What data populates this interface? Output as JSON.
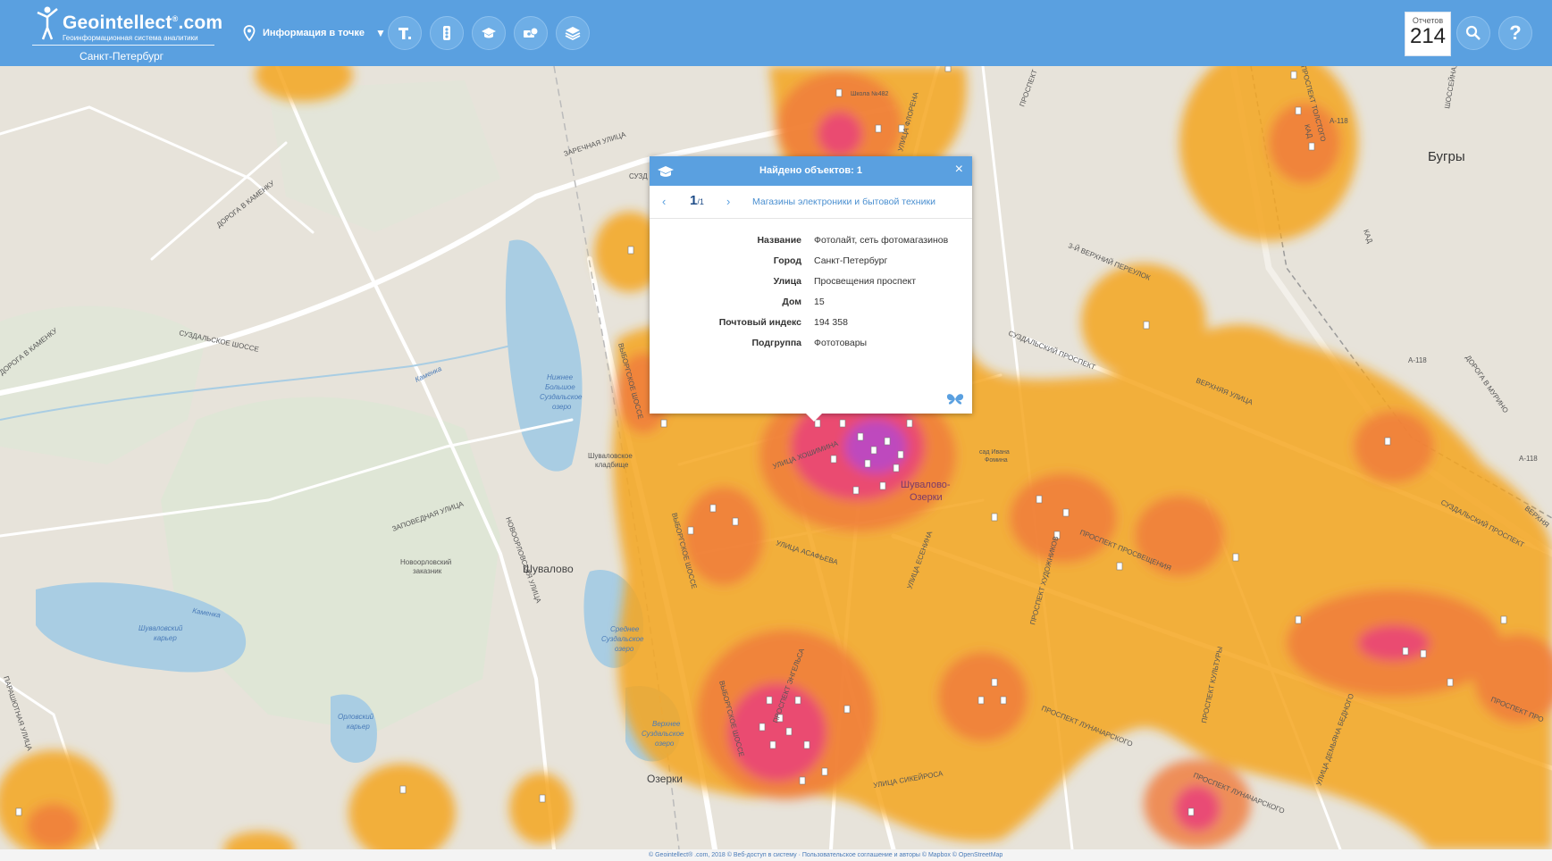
{
  "header": {
    "brand": "Geointellect",
    "brand_suffix": ".com",
    "tagline": "Геоинформационная система аналитики",
    "city": "Санкт-Петербург",
    "mode_label": "Информация в точке",
    "reports_label": "Отчетов",
    "reports_count": "214",
    "help_label": "?"
  },
  "popup": {
    "title": "Найдено объектов: 1",
    "close_label": "×",
    "prev_label": "‹",
    "next_label": "›",
    "page_current": "1",
    "page_sep": "/1",
    "category": "Магазины электроники и бытовой техники",
    "fields": [
      {
        "key": "Название",
        "value": "Фотолайт, сеть фотомагазинов"
      },
      {
        "key": "Город",
        "value": "Санкт-Петербург"
      },
      {
        "key": "Улица",
        "value": "Просвещения проспект"
      },
      {
        "key": "Дом",
        "value": "15"
      },
      {
        "key": "Почтовый индекс",
        "value": "194 358"
      },
      {
        "key": "Подгруппа",
        "value": "Фототовары"
      }
    ]
  },
  "map_labels": {
    "bugry": "Бугры",
    "shuvalovo": "Шувалово",
    "ozerki": "Озерки",
    "shuvalovo_ozerki_1": "Шувалово-",
    "shuvalovo_ozerki_2": "Озерки",
    "zarechnaya": "ЗАРЕЧНАЯ УЛИЦА",
    "suzdalskoe_shosse": "СУЗДАЛЬСКОЕ ШОССЕ",
    "doroga_kamenku": "ДОРОГА В КАМЕНКУ",
    "doroga_kamenku_2": "ДОРОГА В КАМЕНКУ",
    "zapovednaya": "ЗАПОВЕДНАЯ УЛИЦА",
    "novoorlovskaya": "НОВООРЛОВСКАЯ УЛИЦА",
    "novoorlovsky_1": "Новоорловский",
    "novoorlovsky_2": "заказник",
    "lake_nizhnee_1": "Нижнее",
    "lake_nizhnee_2": "Большое",
    "lake_nizhnee_3": "Суздальское",
    "lake_nizhnee_4": "озеро",
    "lake_srednee_1": "Среднее",
    "lake_srednee_2": "Суздальское",
    "lake_srednee_3": "озеро",
    "lake_verhnee_1": "Верхнее",
    "lake_verhnee_2": "Суздальское",
    "lake_verhnee_3": "озеро",
    "shuvalovsky_1": "Шуваловский",
    "shuvalovsky_2": "карьер",
    "orlovsky_1": "Орловский",
    "orlovsky_2": "карьер",
    "kamenka": "Каменка",
    "kamenka_2": "Каменка",
    "cemetery_1": "Шуваловское",
    "cemetery_2": "кладбище",
    "suzdalsky_prospekt": "СУЗДАЛЬСКИЙ ПРОСПЕКТ",
    "suzdalsky_prospekt_2": "СУЗДАЛЬСКИЙ ПРОСПЕКТ",
    "verhny_3": "3-Й ВЕРХНИЙ ПЕРЕУЛОК",
    "verhnyaya": "ВЕРХНЯЯ УЛИЦА",
    "prosveshcheniya": "ПРОСПЕКТ ПРОСВЕЩЕНИЯ",
    "lunacharskogo": "ПРОСПЕКТ ЛУНАЧАРСКОГО",
    "lunacharskogo_2": "ПРОСПЕКТ ЛУНАЧАРСКОГО",
    "kultury": "ПРОСПЕКТ КУЛЬТУРЫ",
    "eseninа": "УЛИЦА ЕСЕНИНА",
    "hoshimina": "УЛИЦА ХОШИМИНА",
    "asafieva": "УЛИЦА АСАФЬЕВА",
    "vyborgskoe": "ВЫБОРГСКОЕ ШОССЕ",
    "vyborgskoe_2": "ВЫБОРГСКОЕ ШОССЕ",
    "vyborgskoe_3": "ВЫБОРГСКОЕ ШОССЕ",
    "engelsa": "ПРОСПЕКТ ЭНГЕЛЬСА",
    "sikeyrosa": "УЛИЦА СИКЕЙРОСА",
    "parashyutnaya": "ПАРАШЮТНАЯ УЛИЦА",
    "demyana_bednogo": "УЛИЦА ДЕМЬЯНА БЕДНОГО",
    "kad": "КАД",
    "kad_2": "КАД",
    "a118": "А-118",
    "a118_2": "А-118",
    "a118_3": "А-118",
    "school": "Школа №482",
    "sad": "сад Ивана",
    "sad_2": "Фомина",
    "doroga_murino": "ДОРОГА В МУРИНО",
    "shosseynaya": "ШОССЕЙНАЯ",
    "prospekt_top": "ПРОСПЕКТ",
    "suzd_top": "СУЗД",
    "hudozhnikov": "ПРОСПЕКТ ХУДОЖНИКОВ",
    "flora": "УЛИЦА ФЛОРЕНА",
    "prospekt_prosv_right": "ПРОСПЕКТ ПРО",
    "verhnyaya_right": "ВЕРХНЯ",
    "tolstogo": "ПРОСПЕКТ ТОЛСТОГО"
  },
  "footer": {
    "text": "© Geointellect® .com, 2018 © Веб-доступ в систему · Пользовательское соглашение и авторы    © Mapbox © OpenStreetMap"
  },
  "colors": {
    "header": "#5aa0e0",
    "heat_low": "#f5a623",
    "heat_mid": "#f07a3a",
    "heat_high": "#e8407a",
    "heat_peak": "#b04ad8"
  },
  "icons": [
    "map-pin-icon",
    "text-tool-icon",
    "traffic-light-icon",
    "graduation-cap-icon",
    "money-icon",
    "layers-icon",
    "search-icon",
    "help-icon",
    "close-icon"
  ]
}
